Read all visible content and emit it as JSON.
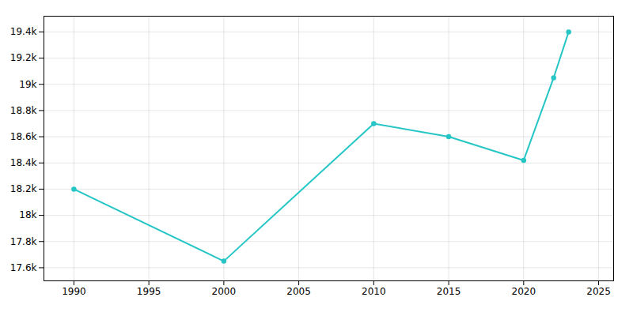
{
  "chart_data": {
    "type": "line",
    "x": [
      1990,
      2000,
      2010,
      2015,
      2020,
      2022,
      2023
    ],
    "values": [
      18200,
      17650,
      18700,
      18600,
      18420,
      19050,
      19400
    ],
    "color": "#26C6C6",
    "marker": "circle",
    "line_style": "solid",
    "xlim": [
      1988,
      2026
    ],
    "ylim": [
      17500,
      19520
    ],
    "xticks": [
      1990,
      1995,
      2000,
      2005,
      2010,
      2015,
      2020,
      2025
    ],
    "yticks": [
      {
        "value": 17600,
        "label": "17.6k"
      },
      {
        "value": 17800,
        "label": "17.8k"
      },
      {
        "value": 18000,
        "label": "18k"
      },
      {
        "value": 18200,
        "label": "18.2k"
      },
      {
        "value": 18400,
        "label": "18.4k"
      },
      {
        "value": 18600,
        "label": "18.6k"
      },
      {
        "value": 18800,
        "label": "18.8k"
      },
      {
        "value": 19000,
        "label": "19k"
      },
      {
        "value": 19200,
        "label": "19.2k"
      },
      {
        "value": 19400,
        "label": "19.4k"
      }
    ],
    "grid": true
  }
}
